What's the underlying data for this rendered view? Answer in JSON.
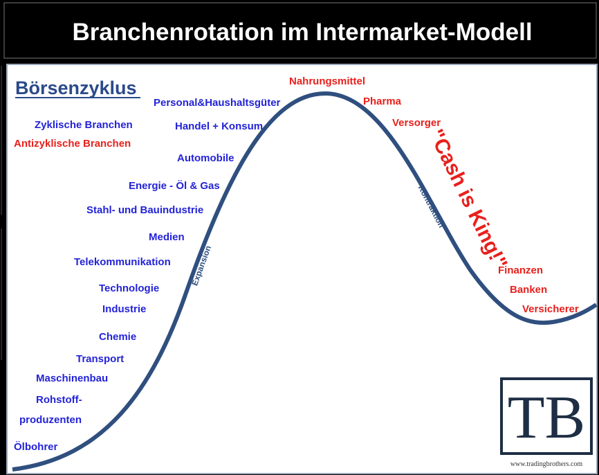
{
  "header": {
    "title": "Branchenrotation im Intermarket-Modell"
  },
  "diagram": {
    "heading": "Börsenzyklus",
    "legend": [
      {
        "label": "Zyklische Branchen",
        "color": "#2323d8"
      },
      {
        "label": "Antizyklische Branchen",
        "color": "#e8201c"
      }
    ],
    "cyclical": [
      "Personal&Haushaltsgüter",
      "Handel + Konsum",
      "Automobile",
      "Energie - Öl & Gas",
      "Stahl- und Bauindustrie",
      "Medien",
      "Telekommunikation",
      "Technologie",
      "Industrie",
      "Chemie",
      "Transport",
      "Maschinenbau",
      "Rohstoff-",
      "produzenten",
      "Ölbohrer"
    ],
    "anticyclical": [
      "Nahrungsmittel",
      "Pharma",
      "Versorger",
      "Finanzen",
      "Banken",
      "Versicherer"
    ],
    "phases": [
      "Expansion",
      "Kontraktion"
    ],
    "annotation": "\"Cash is King!\"",
    "logo": {
      "text": "TB",
      "url": "www.tradingbrothers.com"
    }
  }
}
